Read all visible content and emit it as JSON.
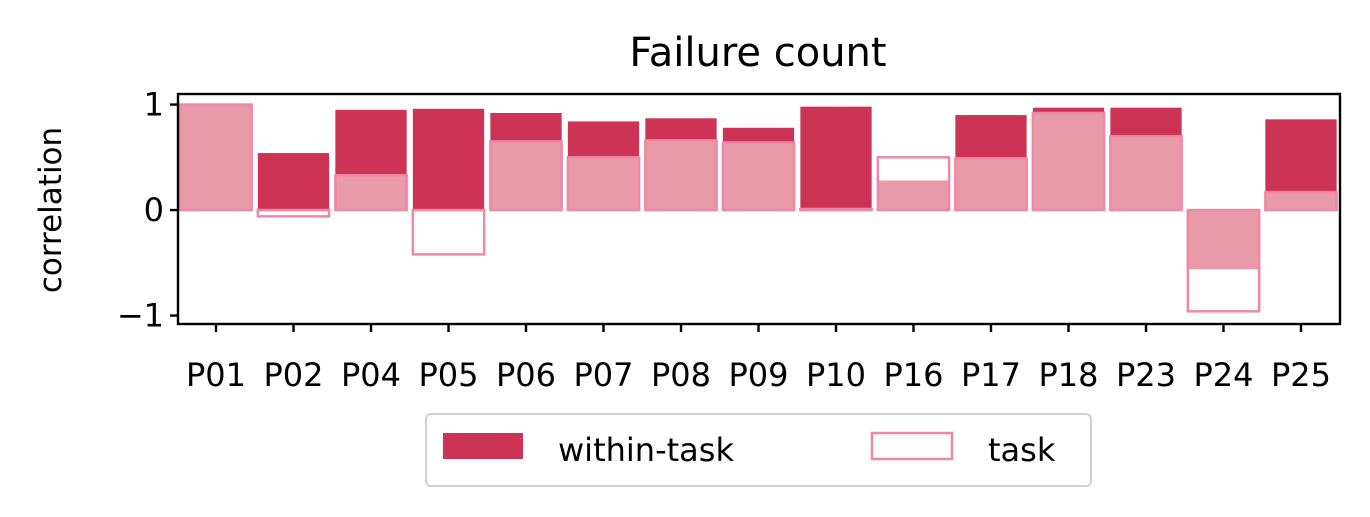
{
  "chart_data": {
    "type": "bar",
    "title": "Failure count",
    "xlabel": "",
    "ylabel": "correlation",
    "ylim": [
      -1.08,
      1.1
    ],
    "yticks": [
      {
        "value": 1,
        "label": "1"
      },
      {
        "value": 0,
        "label": "0"
      },
      {
        "value": -1,
        "label": "−1"
      }
    ],
    "categories": [
      "P01",
      "P02",
      "P04",
      "P05",
      "P06",
      "P07",
      "P08",
      "P09",
      "P10",
      "P16",
      "P17",
      "P18",
      "P23",
      "P24",
      "P25"
    ],
    "series": [
      {
        "name": "within-task",
        "color": "#cc3355",
        "style": "filled",
        "values": [
          1.0,
          0.54,
          0.95,
          0.96,
          0.92,
          0.84,
          0.87,
          0.78,
          0.98,
          0.28,
          0.9,
          0.97,
          0.97,
          -0.56,
          0.86
        ]
      },
      {
        "name": "task",
        "color": "#ee88a4",
        "style": "outline",
        "values": [
          1.0,
          -0.06,
          0.33,
          -0.42,
          0.65,
          0.5,
          0.66,
          0.64,
          0.01,
          0.5,
          0.49,
          0.92,
          0.7,
          -0.96,
          0.17
        ]
      }
    ],
    "overlap_fill_color": "#e899aa",
    "grid": false,
    "legend": {
      "placement": "bottom-center"
    }
  }
}
